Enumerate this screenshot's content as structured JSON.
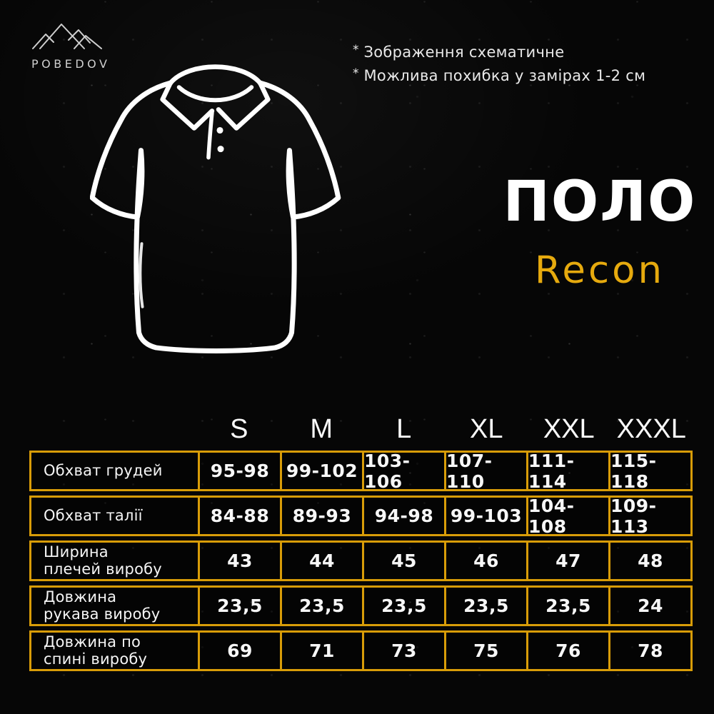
{
  "brand": {
    "name": "POBEDOV"
  },
  "notes": [
    {
      "marker": "*",
      "text": "Зображення схематичне"
    },
    {
      "marker": "*",
      "text": "Можлива похибка у замірах 1-2 см"
    }
  ],
  "product": {
    "type": "ПОЛО",
    "model": "Recon"
  },
  "icons": {
    "logo": "pobedov-mountains-icon",
    "drawing": "polo-shirt-outline-icon"
  },
  "colors": {
    "background": "#060606",
    "accent_gold": "#E6AA0E",
    "table_border": "#D89C08",
    "text_primary": "#F2F2F2",
    "text_secondary": "#CFCFCF"
  },
  "chart_data": {
    "type": "table",
    "title": "ПОЛО Recon — таблиця розмірів (см)",
    "columns": [
      "",
      "S",
      "M",
      "L",
      "XL",
      "XXL",
      "XXXL"
    ],
    "rows": [
      [
        "Обхват грудей",
        "95-98",
        "99-102",
        "103-106",
        "107-110",
        "111-114",
        "115-118"
      ],
      [
        "Обхват талії",
        "84-88",
        "89-93",
        "94-98",
        "99-103",
        "104-108",
        "109-113"
      ],
      [
        "Ширина плечей виробу",
        "43",
        "44",
        "45",
        "46",
        "47",
        "48"
      ],
      [
        "Довжина рукава виробу",
        "23,5",
        "23,5",
        "23,5",
        "23,5",
        "23,5",
        "24"
      ],
      [
        "Довжина по спині виробу",
        "69",
        "71",
        "73",
        "75",
        "76",
        "78"
      ]
    ]
  }
}
